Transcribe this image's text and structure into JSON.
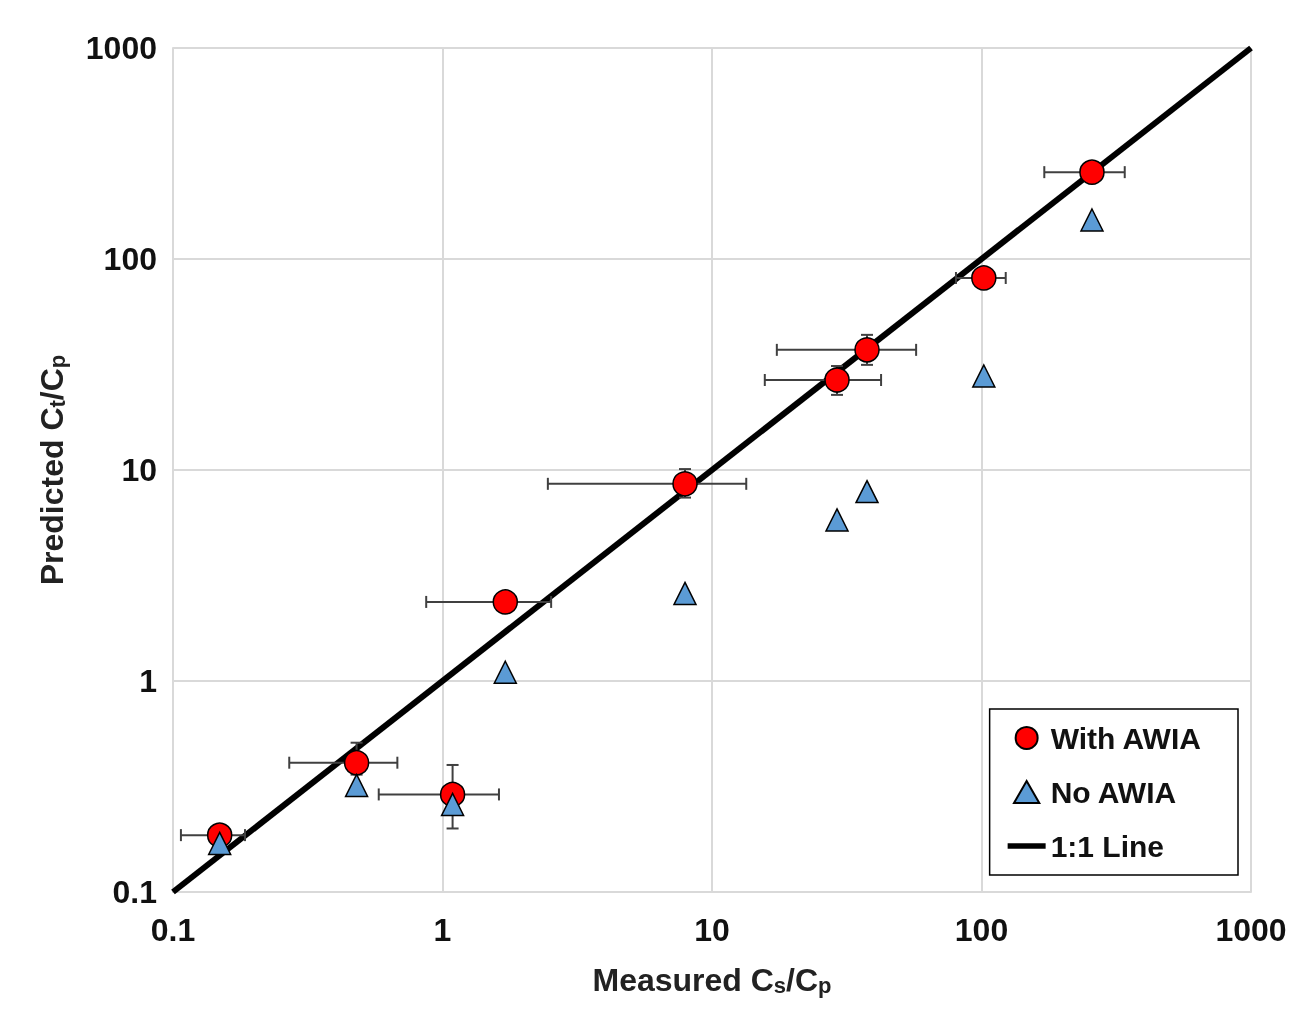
{
  "chart_data": {
    "type": "scatter",
    "xlabel": "Measured C$_{s}$/C$_{p}$",
    "ylabel": "Predicted C$_{t}$/C$_{p}$",
    "log": "xy",
    "xlim": [
      0.1,
      1000
    ],
    "ylim": [
      0.1,
      1000
    ],
    "xticks": [
      0.1,
      1,
      10,
      100,
      1000
    ],
    "yticks": [
      0.1,
      1,
      10,
      100,
      1000
    ],
    "grid": true,
    "legend": "bottom right",
    "series": [
      {
        "name": "With AWIA",
        "color": "#ff0000",
        "marker": "circle",
        "x": [
          0.149,
          0.48,
          1.09,
          1.71,
          7.94,
          29.1,
          37.6,
          102,
          257
        ],
        "values": [
          0.186,
          0.41,
          0.29,
          2.37,
          8.6,
          26.7,
          37.1,
          81.3,
          258
        ],
        "xerrors": [
          [
            0.107,
            0.185
          ],
          [
            0.27,
            0.68
          ],
          [
            0.58,
            1.62
          ],
          [
            0.87,
            2.53
          ],
          [
            2.46,
            13.4
          ],
          [
            15.7,
            42.4
          ],
          [
            17.4,
            57.2
          ],
          [
            80.4,
            123
          ],
          [
            171,
            340
          ]
        ],
        "errors": [
          null,
          [
            0.36,
            0.51
          ],
          [
            0.2,
            0.4
          ],
          null,
          [
            7.4,
            10.1
          ],
          [
            22.7,
            31.1
          ],
          [
            31.5,
            43.7
          ],
          null,
          null
        ]
      },
      {
        "name": "No AWIA",
        "color": "#5b9bd5",
        "marker": "triangle",
        "x": [
          0.149,
          0.48,
          1.09,
          1.71,
          7.94,
          29.1,
          37.6,
          102,
          257
        ],
        "values": [
          0.17,
          0.32,
          0.26,
          1.1,
          2.6,
          5.8,
          7.9,
          27.9,
          153
        ]
      },
      {
        "name": "1:1 Line",
        "type": "line",
        "color": "#000000",
        "marker": "none",
        "x": [
          0.1,
          1000
        ],
        "values": [
          0.1,
          1000
        ]
      }
    ]
  }
}
